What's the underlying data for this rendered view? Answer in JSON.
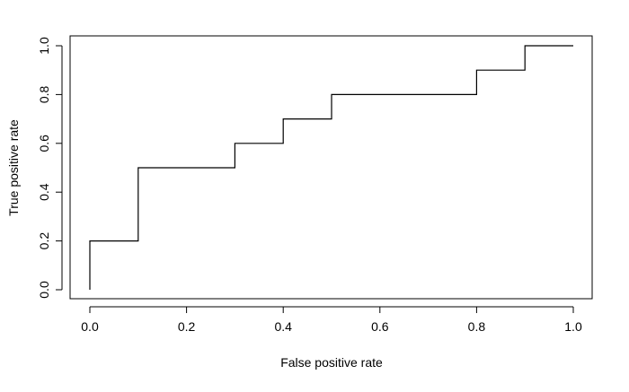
{
  "chart_data": {
    "type": "line",
    "title": "",
    "xlabel": "False positive rate",
    "ylabel": "True positive rate",
    "xlim": [
      0,
      1
    ],
    "ylim": [
      0,
      1
    ],
    "x_ticks": [
      0.0,
      0.2,
      0.4,
      0.6,
      0.8,
      1.0
    ],
    "x_tick_labels": [
      "0.0",
      "0.2",
      "0.4",
      "0.6",
      "0.8",
      "1.0"
    ],
    "y_ticks": [
      0.0,
      0.2,
      0.4,
      0.6,
      0.8,
      1.0
    ],
    "y_tick_labels": [
      "0.0",
      "0.2",
      "0.4",
      "0.6",
      "0.8",
      "1.0"
    ],
    "grid": false,
    "line_style": "step",
    "line_color": "#000000",
    "series": [
      {
        "x": [
          0.0,
          0.0,
          0.1,
          0.1,
          0.3,
          0.3,
          0.4,
          0.4,
          0.5,
          0.5,
          0.8,
          0.8,
          0.9,
          0.9,
          1.0
        ],
        "y": [
          0.0,
          0.2,
          0.2,
          0.5,
          0.5,
          0.6,
          0.6,
          0.7,
          0.7,
          0.8,
          0.8,
          0.9,
          0.9,
          1.0,
          1.0
        ]
      }
    ]
  }
}
